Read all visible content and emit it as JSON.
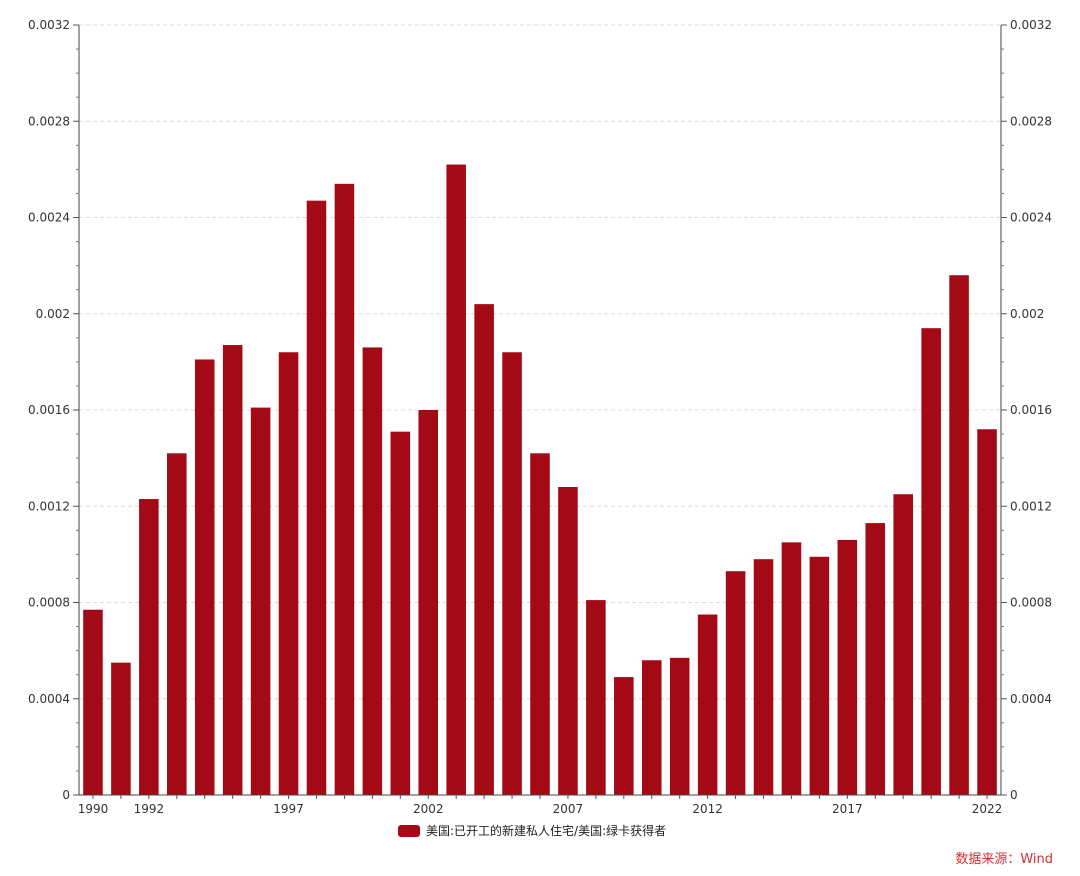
{
  "chart_data": {
    "type": "bar",
    "categories": [
      "1990",
      "1991",
      "1992",
      "1993",
      "1994",
      "1995",
      "1996",
      "1997",
      "1998",
      "1999",
      "2000",
      "2001",
      "2002",
      "2003",
      "2004",
      "2005",
      "2006",
      "2007",
      "2008",
      "2009",
      "2010",
      "2011",
      "2012",
      "2013",
      "2014",
      "2015",
      "2016",
      "2017",
      "2018",
      "2019",
      "2020",
      "2021",
      "2022"
    ],
    "x_tick_labels": [
      "1990",
      "1992",
      "1997",
      "2002",
      "2007",
      "2012",
      "2017",
      "2022"
    ],
    "series": [
      {
        "name": "美国:已开工的新建私人住宅/美国:绿卡获得者",
        "color": "#a30a16",
        "values": [
          0.00077,
          0.00055,
          0.00123,
          0.00142,
          0.00181,
          0.00187,
          0.00161,
          0.00184,
          0.00247,
          0.00254,
          0.00186,
          0.00151,
          0.0016,
          0.00262,
          0.00204,
          0.00184,
          0.00142,
          0.00128,
          0.00081,
          0.00049,
          0.00056,
          0.00057,
          0.00075,
          0.00093,
          0.00098,
          0.00105,
          0.00099,
          0.00106,
          0.00113,
          0.00125,
          0.00194,
          0.00216,
          0.00152
        ]
      }
    ],
    "y_ticks": [
      "0",
      "0.0004",
      "0.0008",
      "0.0012",
      "0.0016",
      "0.002",
      "0.0024",
      "0.0028",
      "0.0032"
    ],
    "ylim": [
      0,
      0.0032
    ],
    "grid": true,
    "legend_position": "bottom-center",
    "title": "",
    "xlabel": "",
    "ylabel": ""
  },
  "source_text": "数据来源：Wind"
}
